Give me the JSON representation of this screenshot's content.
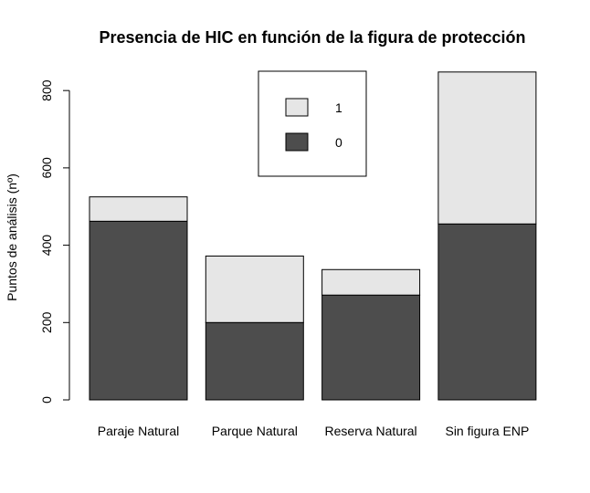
{
  "chart_data": {
    "type": "bar",
    "stacked": true,
    "title": "Presencia de HIC en función de la figura de protección",
    "xlabel": "",
    "ylabel": "Puntos de análisis (nº)",
    "ylim": [
      0,
      850
    ],
    "yticks": [
      0,
      200,
      400,
      600,
      800
    ],
    "categories": [
      "Paraje Natural",
      "Parque Natural",
      "Reserva Natural",
      "Sin figura ENP"
    ],
    "series": [
      {
        "name": "0",
        "color": "#4d4d4d",
        "values": [
          462,
          200,
          271,
          455
        ]
      },
      {
        "name": "1",
        "color": "#e6e6e6",
        "values": [
          63,
          172,
          66,
          393
        ]
      }
    ],
    "legend": {
      "placement": "top-center",
      "order": [
        "1",
        "0"
      ]
    },
    "grid": false
  }
}
